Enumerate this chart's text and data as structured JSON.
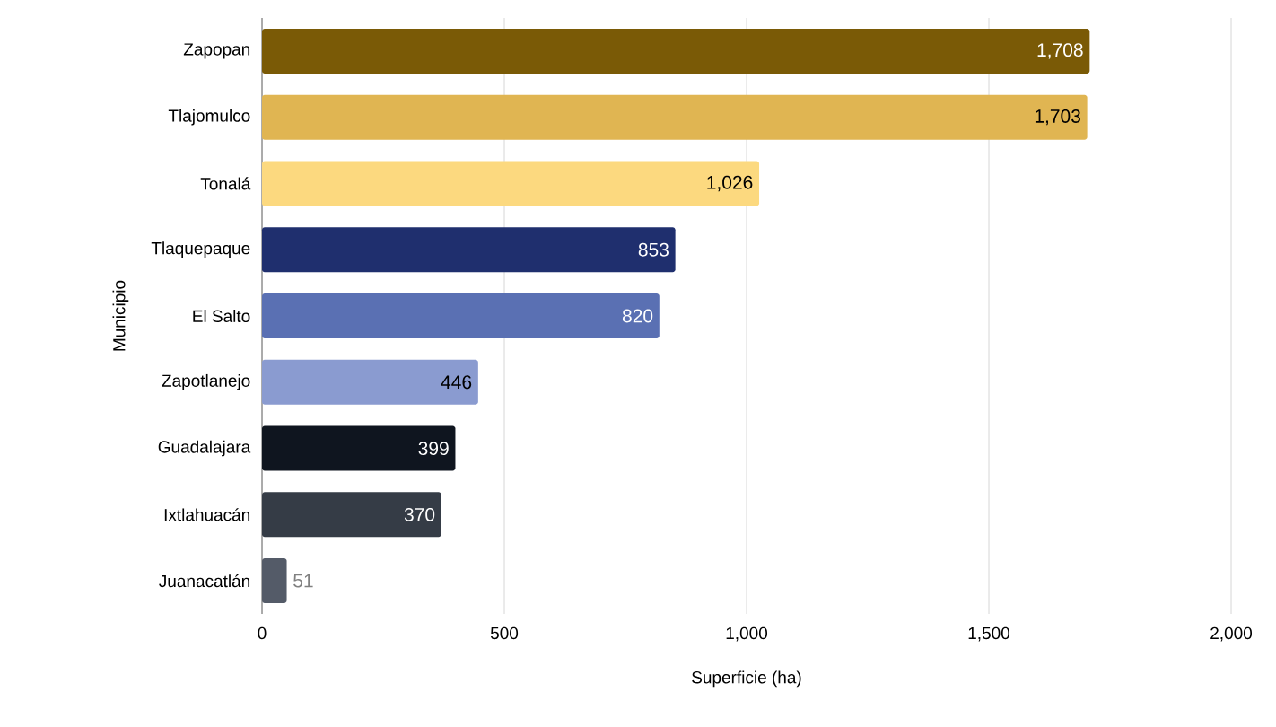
{
  "chart_data": {
    "type": "bar",
    "orientation": "horizontal",
    "xlabel": "Superficie (ha)",
    "ylabel": "Municipio",
    "categories": [
      "Zapopan",
      "Tlajomulco",
      "Tonalá",
      "Tlaquepaque",
      "El Salto",
      "Zapotlanejo",
      "Guadalajara",
      "Ixtlahuacán",
      "Juanacatlán"
    ],
    "values": [
      1708,
      1703,
      1026,
      853,
      820,
      446,
      399,
      370,
      51
    ],
    "value_labels": [
      "1,708",
      "1,703",
      "1,026",
      "853",
      "820",
      "446",
      "399",
      "370",
      "51"
    ],
    "colors": [
      "#7a5a06",
      "#e0b552",
      "#fcd97f",
      "#1f2f6e",
      "#5a70b3",
      "#8a9bd0",
      "#0f151f",
      "#353c46",
      "#545b68"
    ],
    "xlim": [
      0,
      2000
    ],
    "xticks": [
      0,
      500,
      {
        "value": 1000,
        "label": "1,000"
      },
      {
        "value": 1500,
        "label": "1,500"
      },
      {
        "value": 2000,
        "label": "2,000"
      }
    ],
    "grid": "x"
  }
}
